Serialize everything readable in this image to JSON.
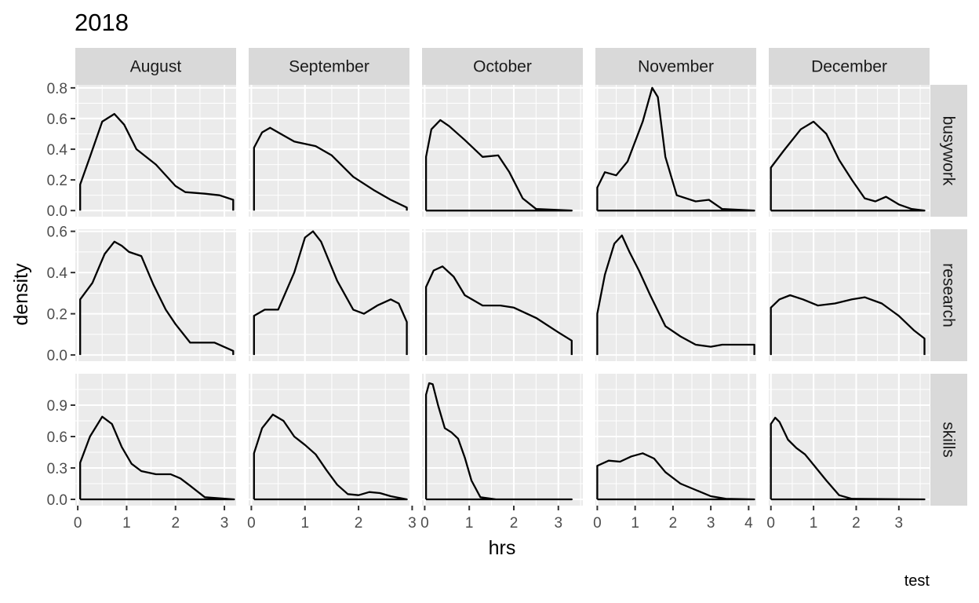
{
  "chart_data": {
    "type": "area",
    "title": "2018",
    "xlabel": "hrs",
    "ylabel": "density",
    "caption": "test",
    "grid": true,
    "columns": [
      {
        "label": "August",
        "xlim": [
          -0.05,
          3.24
        ],
        "xticks": [
          0,
          1,
          2,
          3
        ]
      },
      {
        "label": "September",
        "xlim": [
          -0.05,
          2.95
        ],
        "xticks": [
          0,
          1,
          2,
          3
        ]
      },
      {
        "label": "October",
        "xlim": [
          -0.06,
          3.55
        ],
        "xticks": [
          0,
          1,
          2,
          3
        ]
      },
      {
        "label": "November",
        "xlim": [
          -0.05,
          4.2
        ],
        "xticks": [
          0,
          1,
          2,
          3,
          4
        ]
      },
      {
        "label": "December",
        "xlim": [
          -0.05,
          3.72
        ],
        "xticks": [
          0,
          1,
          2,
          3
        ]
      }
    ],
    "rows": [
      {
        "label": "busywork",
        "ylim": [
          -0.04,
          0.82
        ],
        "yticks": [
          "0.0",
          "0.2",
          "0.4",
          "0.6",
          "0.8"
        ]
      },
      {
        "label": "research",
        "ylim": [
          -0.03,
          0.61
        ],
        "yticks": [
          "0.0",
          "0.2",
          "0.4",
          "0.6"
        ]
      },
      {
        "label": "skills",
        "ylim": [
          -0.06,
          1.2
        ],
        "yticks": [
          "0.0",
          "0.3",
          "0.6",
          "0.9"
        ]
      }
    ],
    "panels": [
      {
        "row": 0,
        "col": 0,
        "points": [
          [
            0.05,
            0
          ],
          [
            0.05,
            0.17
          ],
          [
            0.25,
            0.35
          ],
          [
            0.5,
            0.58
          ],
          [
            0.75,
            0.63
          ],
          [
            0.95,
            0.56
          ],
          [
            1.2,
            0.4
          ],
          [
            1.6,
            0.3
          ],
          [
            2.0,
            0.16
          ],
          [
            2.2,
            0.12
          ],
          [
            2.6,
            0.11
          ],
          [
            2.9,
            0.1
          ],
          [
            3.18,
            0.07
          ],
          [
            3.18,
            0
          ]
        ]
      },
      {
        "row": 0,
        "col": 1,
        "points": [
          [
            0.05,
            0
          ],
          [
            0.05,
            0.41
          ],
          [
            0.2,
            0.51
          ],
          [
            0.35,
            0.54
          ],
          [
            0.6,
            0.49
          ],
          [
            0.8,
            0.45
          ],
          [
            1.2,
            0.42
          ],
          [
            1.5,
            0.36
          ],
          [
            1.9,
            0.22
          ],
          [
            2.3,
            0.13
          ],
          [
            2.6,
            0.07
          ],
          [
            2.9,
            0.02
          ],
          [
            2.9,
            0
          ]
        ]
      },
      {
        "row": 0,
        "col": 2,
        "points": [
          [
            0.03,
            0
          ],
          [
            0.03,
            0.35
          ],
          [
            0.15,
            0.53
          ],
          [
            0.35,
            0.59
          ],
          [
            0.55,
            0.55
          ],
          [
            0.9,
            0.46
          ],
          [
            1.3,
            0.35
          ],
          [
            1.65,
            0.36
          ],
          [
            1.9,
            0.25
          ],
          [
            2.2,
            0.08
          ],
          [
            2.5,
            0.01
          ],
          [
            3.3,
            0
          ],
          [
            0.03,
            0
          ]
        ]
      },
      {
        "row": 0,
        "col": 3,
        "points": [
          [
            0,
            0
          ],
          [
            0,
            0.15
          ],
          [
            0.2,
            0.25
          ],
          [
            0.5,
            0.23
          ],
          [
            0.8,
            0.32
          ],
          [
            1.2,
            0.58
          ],
          [
            1.45,
            0.8
          ],
          [
            1.6,
            0.74
          ],
          [
            1.8,
            0.35
          ],
          [
            2.1,
            0.1
          ],
          [
            2.6,
            0.06
          ],
          [
            2.95,
            0.07
          ],
          [
            3.3,
            0.01
          ],
          [
            4.15,
            0
          ],
          [
            0,
            0
          ]
        ]
      },
      {
        "row": 0,
        "col": 4,
        "points": [
          [
            0,
            0
          ],
          [
            0,
            0.28
          ],
          [
            0.3,
            0.39
          ],
          [
            0.7,
            0.53
          ],
          [
            1.0,
            0.58
          ],
          [
            1.3,
            0.5
          ],
          [
            1.6,
            0.33
          ],
          [
            1.9,
            0.2
          ],
          [
            2.2,
            0.08
          ],
          [
            2.45,
            0.06
          ],
          [
            2.7,
            0.09
          ],
          [
            3.0,
            0.04
          ],
          [
            3.3,
            0.01
          ],
          [
            3.6,
            0
          ],
          [
            0,
            0
          ]
        ]
      },
      {
        "row": 1,
        "col": 0,
        "points": [
          [
            0.05,
            0
          ],
          [
            0.05,
            0.27
          ],
          [
            0.3,
            0.35
          ],
          [
            0.55,
            0.49
          ],
          [
            0.75,
            0.55
          ],
          [
            0.9,
            0.53
          ],
          [
            1.05,
            0.5
          ],
          [
            1.3,
            0.48
          ],
          [
            1.55,
            0.34
          ],
          [
            1.8,
            0.22
          ],
          [
            2.0,
            0.15
          ],
          [
            2.3,
            0.06
          ],
          [
            2.6,
            0.06
          ],
          [
            2.8,
            0.06
          ],
          [
            3.18,
            0.02
          ],
          [
            3.18,
            0
          ]
        ]
      },
      {
        "row": 1,
        "col": 1,
        "points": [
          [
            0.05,
            0
          ],
          [
            0.05,
            0.19
          ],
          [
            0.25,
            0.22
          ],
          [
            0.5,
            0.22
          ],
          [
            0.8,
            0.4
          ],
          [
            1.0,
            0.57
          ],
          [
            1.15,
            0.6
          ],
          [
            1.3,
            0.55
          ],
          [
            1.6,
            0.36
          ],
          [
            1.9,
            0.22
          ],
          [
            2.1,
            0.2
          ],
          [
            2.35,
            0.24
          ],
          [
            2.6,
            0.27
          ],
          [
            2.75,
            0.25
          ],
          [
            2.9,
            0.16
          ],
          [
            2.9,
            0
          ]
        ]
      },
      {
        "row": 1,
        "col": 2,
        "points": [
          [
            0.03,
            0
          ],
          [
            0.03,
            0.33
          ],
          [
            0.2,
            0.41
          ],
          [
            0.4,
            0.43
          ],
          [
            0.65,
            0.38
          ],
          [
            0.9,
            0.29
          ],
          [
            1.3,
            0.24
          ],
          [
            1.7,
            0.24
          ],
          [
            2.0,
            0.23
          ],
          [
            2.5,
            0.18
          ],
          [
            3.0,
            0.11
          ],
          [
            3.3,
            0.07
          ],
          [
            3.3,
            0
          ]
        ]
      },
      {
        "row": 1,
        "col": 3,
        "points": [
          [
            0,
            0
          ],
          [
            0,
            0.2
          ],
          [
            0.2,
            0.39
          ],
          [
            0.45,
            0.54
          ],
          [
            0.65,
            0.58
          ],
          [
            0.85,
            0.5
          ],
          [
            1.1,
            0.41
          ],
          [
            1.4,
            0.29
          ],
          [
            1.8,
            0.14
          ],
          [
            2.2,
            0.09
          ],
          [
            2.6,
            0.05
          ],
          [
            3.0,
            0.04
          ],
          [
            3.3,
            0.05
          ],
          [
            3.7,
            0.05
          ],
          [
            4.15,
            0.05
          ],
          [
            4.15,
            0
          ]
        ]
      },
      {
        "row": 1,
        "col": 4,
        "points": [
          [
            0,
            0
          ],
          [
            0,
            0.23
          ],
          [
            0.2,
            0.27
          ],
          [
            0.45,
            0.29
          ],
          [
            0.75,
            0.27
          ],
          [
            1.1,
            0.24
          ],
          [
            1.5,
            0.25
          ],
          [
            1.9,
            0.27
          ],
          [
            2.2,
            0.28
          ],
          [
            2.6,
            0.25
          ],
          [
            3.0,
            0.19
          ],
          [
            3.35,
            0.12
          ],
          [
            3.6,
            0.08
          ],
          [
            3.6,
            0
          ]
        ]
      },
      {
        "row": 2,
        "col": 0,
        "points": [
          [
            0.05,
            0
          ],
          [
            0.05,
            0.35
          ],
          [
            0.25,
            0.6
          ],
          [
            0.5,
            0.79
          ],
          [
            0.7,
            0.72
          ],
          [
            0.9,
            0.5
          ],
          [
            1.1,
            0.34
          ],
          [
            1.3,
            0.27
          ],
          [
            1.6,
            0.24
          ],
          [
            1.9,
            0.24
          ],
          [
            2.1,
            0.2
          ],
          [
            2.3,
            0.13
          ],
          [
            2.6,
            0.02
          ],
          [
            3.2,
            0
          ],
          [
            0.05,
            0
          ]
        ]
      },
      {
        "row": 2,
        "col": 1,
        "points": [
          [
            0.05,
            0
          ],
          [
            0.05,
            0.44
          ],
          [
            0.2,
            0.68
          ],
          [
            0.4,
            0.81
          ],
          [
            0.6,
            0.75
          ],
          [
            0.8,
            0.6
          ],
          [
            1.0,
            0.52
          ],
          [
            1.2,
            0.43
          ],
          [
            1.4,
            0.28
          ],
          [
            1.6,
            0.14
          ],
          [
            1.8,
            0.05
          ],
          [
            2.0,
            0.04
          ],
          [
            2.2,
            0.07
          ],
          [
            2.4,
            0.06
          ],
          [
            2.6,
            0.03
          ],
          [
            2.9,
            0
          ],
          [
            0.05,
            0
          ]
        ]
      },
      {
        "row": 2,
        "col": 2,
        "points": [
          [
            0.03,
            0
          ],
          [
            0.03,
            1.0
          ],
          [
            0.1,
            1.11
          ],
          [
            0.18,
            1.1
          ],
          [
            0.3,
            0.9
          ],
          [
            0.45,
            0.68
          ],
          [
            0.6,
            0.64
          ],
          [
            0.75,
            0.58
          ],
          [
            0.9,
            0.4
          ],
          [
            1.05,
            0.18
          ],
          [
            1.25,
            0.02
          ],
          [
            1.6,
            0
          ],
          [
            3.3,
            0
          ],
          [
            0.03,
            0
          ]
        ]
      },
      {
        "row": 2,
        "col": 3,
        "points": [
          [
            0,
            0
          ],
          [
            0,
            0.32
          ],
          [
            0.3,
            0.37
          ],
          [
            0.6,
            0.36
          ],
          [
            0.9,
            0.41
          ],
          [
            1.2,
            0.44
          ],
          [
            1.5,
            0.39
          ],
          [
            1.8,
            0.26
          ],
          [
            2.2,
            0.15
          ],
          [
            2.6,
            0.09
          ],
          [
            3.0,
            0.03
          ],
          [
            3.4,
            0.005
          ],
          [
            4.15,
            0
          ],
          [
            0,
            0
          ]
        ]
      },
      {
        "row": 2,
        "col": 4,
        "points": [
          [
            0,
            0
          ],
          [
            0,
            0.72
          ],
          [
            0.1,
            0.78
          ],
          [
            0.2,
            0.74
          ],
          [
            0.4,
            0.57
          ],
          [
            0.6,
            0.49
          ],
          [
            0.8,
            0.43
          ],
          [
            1.0,
            0.33
          ],
          [
            1.3,
            0.18
          ],
          [
            1.6,
            0.04
          ],
          [
            1.9,
            0.005
          ],
          [
            3.6,
            0
          ],
          [
            0,
            0
          ]
        ]
      }
    ]
  }
}
